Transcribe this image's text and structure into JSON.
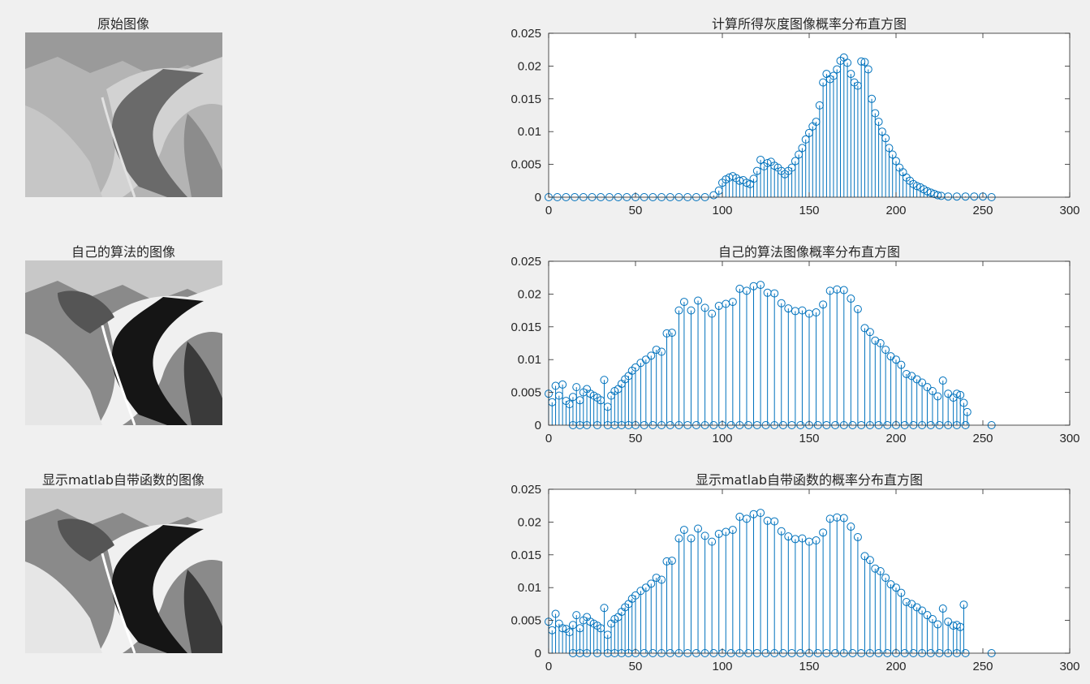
{
  "images": [
    {
      "title": "原始图像"
    },
    {
      "title": "自己的算法的图像"
    },
    {
      "title": "显示matlab自带函数的图像"
    }
  ],
  "colors": {
    "stem": "#0072bd",
    "axis": "#262626",
    "plot_bg": "#ffffff",
    "figure_bg": "#f0f0f0"
  },
  "chart_data": [
    {
      "type": "stem",
      "title": "计算所得灰度图像概率分布直方图",
      "xlim": [
        0,
        300
      ],
      "ylim": [
        0,
        0.025
      ],
      "xticks": [
        0,
        50,
        100,
        150,
        200,
        250,
        300
      ],
      "yticks": [
        0,
        0.005,
        0.01,
        0.015,
        0.02,
        0.025
      ],
      "ytick_labels": [
        "0",
        "0.005",
        "0.01",
        "0.015",
        "0.02",
        "0.025"
      ],
      "points": [
        [
          0,
          0
        ],
        [
          5,
          0
        ],
        [
          10,
          0
        ],
        [
          15,
          0
        ],
        [
          20,
          0
        ],
        [
          25,
          0
        ],
        [
          30,
          0
        ],
        [
          35,
          0
        ],
        [
          40,
          0
        ],
        [
          45,
          0
        ],
        [
          50,
          0
        ],
        [
          55,
          0
        ],
        [
          60,
          0
        ],
        [
          65,
          0
        ],
        [
          70,
          0
        ],
        [
          75,
          0
        ],
        [
          80,
          0
        ],
        [
          85,
          0
        ],
        [
          90,
          0
        ],
        [
          95,
          0.0003
        ],
        [
          98,
          0.001
        ],
        [
          100,
          0.0022
        ],
        [
          102,
          0.0027
        ],
        [
          104,
          0.003
        ],
        [
          106,
          0.0032
        ],
        [
          108,
          0.0029
        ],
        [
          110,
          0.0025
        ],
        [
          112,
          0.0026
        ],
        [
          114,
          0.0022
        ],
        [
          116,
          0.002
        ],
        [
          118,
          0.0028
        ],
        [
          120,
          0.004
        ],
        [
          122,
          0.0057
        ],
        [
          124,
          0.0047
        ],
        [
          126,
          0.0052
        ],
        [
          128,
          0.0054
        ],
        [
          130,
          0.0048
        ],
        [
          132,
          0.0045
        ],
        [
          134,
          0.004
        ],
        [
          136,
          0.0035
        ],
        [
          138,
          0.004
        ],
        [
          140,
          0.0045
        ],
        [
          142,
          0.0055
        ],
        [
          144,
          0.0065
        ],
        [
          146,
          0.0075
        ],
        [
          148,
          0.0088
        ],
        [
          150,
          0.0098
        ],
        [
          152,
          0.0108
        ],
        [
          154,
          0.0115
        ],
        [
          156,
          0.014
        ],
        [
          158,
          0.0175
        ],
        [
          160,
          0.0188
        ],
        [
          162,
          0.018
        ],
        [
          164,
          0.0185
        ],
        [
          166,
          0.0195
        ],
        [
          168,
          0.0208
        ],
        [
          170,
          0.0213
        ],
        [
          172,
          0.0205
        ],
        [
          174,
          0.0188
        ],
        [
          176,
          0.0175
        ],
        [
          178,
          0.017
        ],
        [
          180,
          0.0207
        ],
        [
          182,
          0.0206
        ],
        [
          184,
          0.0195
        ],
        [
          186,
          0.015
        ],
        [
          188,
          0.0128
        ],
        [
          190,
          0.0115
        ],
        [
          192,
          0.01
        ],
        [
          194,
          0.009
        ],
        [
          196,
          0.0075
        ],
        [
          198,
          0.0065
        ],
        [
          200,
          0.0055
        ],
        [
          202,
          0.0045
        ],
        [
          204,
          0.0038
        ],
        [
          206,
          0.003
        ],
        [
          208,
          0.0025
        ],
        [
          210,
          0.002
        ],
        [
          212,
          0.0017
        ],
        [
          214,
          0.0015
        ],
        [
          216,
          0.0012
        ],
        [
          218,
          0.0009
        ],
        [
          220,
          0.0007
        ],
        [
          222,
          0.0005
        ],
        [
          224,
          0.0003
        ],
        [
          226,
          0.0002
        ],
        [
          230,
          0.0001
        ],
        [
          235,
          0.0001
        ],
        [
          240,
          0.0001
        ],
        [
          245,
          0.0001
        ],
        [
          250,
          0.0001
        ],
        [
          255,
          0
        ]
      ]
    },
    {
      "type": "stem",
      "title": "自己的算法图像概率分布直方图",
      "xlim": [
        0,
        300
      ],
      "ylim": [
        0,
        0.025
      ],
      "xticks": [
        0,
        50,
        100,
        150,
        200,
        250,
        300
      ],
      "yticks": [
        0,
        0.005,
        0.01,
        0.015,
        0.02,
        0.025
      ],
      "ytick_labels": [
        "0",
        "0.005",
        "0.01",
        "0.015",
        "0.02",
        "0.025"
      ],
      "points": [
        [
          0,
          0.0048
        ],
        [
          2,
          0.0035
        ],
        [
          4,
          0.006
        ],
        [
          6,
          0.0045
        ],
        [
          8,
          0.0062
        ],
        [
          10,
          0.0037
        ],
        [
          12,
          0.0032
        ],
        [
          14,
          0.0043
        ],
        [
          16,
          0.0058
        ],
        [
          18,
          0.0038
        ],
        [
          20,
          0.005
        ],
        [
          22,
          0.0055
        ],
        [
          24,
          0.0048
        ],
        [
          26,
          0.0045
        ],
        [
          28,
          0.0042
        ],
        [
          30,
          0.0038
        ],
        [
          32,
          0.0069
        ],
        [
          34,
          0.0028
        ],
        [
          36,
          0.0045
        ],
        [
          38,
          0.0052
        ],
        [
          40,
          0.0055
        ],
        [
          42,
          0.0063
        ],
        [
          44,
          0.007
        ],
        [
          46,
          0.0075
        ],
        [
          48,
          0.0083
        ],
        [
          50,
          0.0088
        ],
        [
          53,
          0.0095
        ],
        [
          56,
          0.01
        ],
        [
          59,
          0.0106
        ],
        [
          62,
          0.0115
        ],
        [
          65,
          0.0112
        ],
        [
          68,
          0.014
        ],
        [
          71,
          0.0141
        ],
        [
          75,
          0.0175
        ],
        [
          78,
          0.0188
        ],
        [
          82,
          0.0175
        ],
        [
          86,
          0.019
        ],
        [
          90,
          0.0179
        ],
        [
          94,
          0.017
        ],
        [
          98,
          0.0182
        ],
        [
          102,
          0.0185
        ],
        [
          106,
          0.0188
        ],
        [
          110,
          0.0208
        ],
        [
          114,
          0.0205
        ],
        [
          118,
          0.0212
        ],
        [
          122,
          0.0214
        ],
        [
          126,
          0.0202
        ],
        [
          130,
          0.0201
        ],
        [
          134,
          0.0186
        ],
        [
          138,
          0.0178
        ],
        [
          142,
          0.0174
        ],
        [
          146,
          0.0175
        ],
        [
          150,
          0.017
        ],
        [
          154,
          0.0172
        ],
        [
          158,
          0.0184
        ],
        [
          162,
          0.0205
        ],
        [
          166,
          0.0207
        ],
        [
          170,
          0.0206
        ],
        [
          174,
          0.0193
        ],
        [
          178,
          0.0177
        ],
        [
          182,
          0.0148
        ],
        [
          185,
          0.0142
        ],
        [
          188,
          0.0129
        ],
        [
          191,
          0.0125
        ],
        [
          194,
          0.0115
        ],
        [
          197,
          0.0105
        ],
        [
          200,
          0.01
        ],
        [
          203,
          0.0092
        ],
        [
          206,
          0.0078
        ],
        [
          209,
          0.0075
        ],
        [
          212,
          0.007
        ],
        [
          215,
          0.0065
        ],
        [
          218,
          0.0058
        ],
        [
          221,
          0.0052
        ],
        [
          224,
          0.0044
        ],
        [
          227,
          0.0068
        ],
        [
          230,
          0.0048
        ],
        [
          233,
          0.0042
        ],
        [
          235,
          0.0048
        ],
        [
          237,
          0.0046
        ],
        [
          239,
          0.0034
        ],
        [
          241,
          0.002
        ],
        [
          14,
          0
        ],
        [
          18,
          0
        ],
        [
          22,
          0
        ],
        [
          28,
          0
        ],
        [
          34,
          0
        ],
        [
          38,
          0
        ],
        [
          42,
          0
        ],
        [
          46,
          0
        ],
        [
          50,
          0
        ],
        [
          55,
          0
        ],
        [
          60,
          0
        ],
        [
          65,
          0
        ],
        [
          70,
          0
        ],
        [
          75,
          0
        ],
        [
          80,
          0
        ],
        [
          85,
          0
        ],
        [
          90,
          0
        ],
        [
          95,
          0
        ],
        [
          100,
          0
        ],
        [
          105,
          0
        ],
        [
          110,
          0
        ],
        [
          115,
          0
        ],
        [
          120,
          0
        ],
        [
          125,
          0
        ],
        [
          130,
          0
        ],
        [
          135,
          0
        ],
        [
          140,
          0
        ],
        [
          145,
          0
        ],
        [
          150,
          0
        ],
        [
          155,
          0
        ],
        [
          160,
          0
        ],
        [
          165,
          0
        ],
        [
          170,
          0
        ],
        [
          175,
          0
        ],
        [
          180,
          0
        ],
        [
          185,
          0
        ],
        [
          190,
          0
        ],
        [
          195,
          0
        ],
        [
          200,
          0
        ],
        [
          205,
          0
        ],
        [
          210,
          0
        ],
        [
          215,
          0
        ],
        [
          220,
          0
        ],
        [
          225,
          0
        ],
        [
          230,
          0
        ],
        [
          235,
          0
        ],
        [
          240,
          0
        ],
        [
          255,
          0
        ]
      ]
    },
    {
      "type": "stem",
      "title": "显示matlab自带函数的概率分布直方图",
      "xlim": [
        0,
        300
      ],
      "ylim": [
        0,
        0.025
      ],
      "xticks": [
        0,
        50,
        100,
        150,
        200,
        250,
        300
      ],
      "yticks": [
        0,
        0.005,
        0.01,
        0.015,
        0.02,
        0.025
      ],
      "ytick_labels": [
        "0",
        "0.005",
        "0.01",
        "0.015",
        "0.02",
        "0.025"
      ],
      "points": [
        [
          0,
          0.0048
        ],
        [
          2,
          0.0035
        ],
        [
          4,
          0.006
        ],
        [
          6,
          0.0045
        ],
        [
          8,
          0.0038
        ],
        [
          10,
          0.0037
        ],
        [
          12,
          0.0032
        ],
        [
          14,
          0.0043
        ],
        [
          16,
          0.0058
        ],
        [
          18,
          0.0038
        ],
        [
          20,
          0.005
        ],
        [
          22,
          0.0055
        ],
        [
          24,
          0.0048
        ],
        [
          26,
          0.0045
        ],
        [
          28,
          0.0042
        ],
        [
          30,
          0.0038
        ],
        [
          32,
          0.0069
        ],
        [
          34,
          0.0028
        ],
        [
          36,
          0.0045
        ],
        [
          38,
          0.0052
        ],
        [
          40,
          0.0055
        ],
        [
          42,
          0.0063
        ],
        [
          44,
          0.007
        ],
        [
          46,
          0.0075
        ],
        [
          48,
          0.0083
        ],
        [
          50,
          0.0088
        ],
        [
          53,
          0.0095
        ],
        [
          56,
          0.01
        ],
        [
          59,
          0.0106
        ],
        [
          62,
          0.0115
        ],
        [
          65,
          0.0112
        ],
        [
          68,
          0.014
        ],
        [
          71,
          0.0141
        ],
        [
          75,
          0.0175
        ],
        [
          78,
          0.0188
        ],
        [
          82,
          0.0175
        ],
        [
          86,
          0.019
        ],
        [
          90,
          0.0179
        ],
        [
          94,
          0.017
        ],
        [
          98,
          0.0182
        ],
        [
          102,
          0.0185
        ],
        [
          106,
          0.0188
        ],
        [
          110,
          0.0208
        ],
        [
          114,
          0.0205
        ],
        [
          118,
          0.0212
        ],
        [
          122,
          0.0214
        ],
        [
          126,
          0.0202
        ],
        [
          130,
          0.0201
        ],
        [
          134,
          0.0186
        ],
        [
          138,
          0.0178
        ],
        [
          142,
          0.0174
        ],
        [
          146,
          0.0175
        ],
        [
          150,
          0.017
        ],
        [
          154,
          0.0172
        ],
        [
          158,
          0.0184
        ],
        [
          162,
          0.0205
        ],
        [
          166,
          0.0207
        ],
        [
          170,
          0.0206
        ],
        [
          174,
          0.0193
        ],
        [
          178,
          0.0177
        ],
        [
          182,
          0.0148
        ],
        [
          185,
          0.0142
        ],
        [
          188,
          0.0129
        ],
        [
          191,
          0.0125
        ],
        [
          194,
          0.0115
        ],
        [
          197,
          0.0105
        ],
        [
          200,
          0.01
        ],
        [
          203,
          0.0092
        ],
        [
          206,
          0.0078
        ],
        [
          209,
          0.0075
        ],
        [
          212,
          0.007
        ],
        [
          215,
          0.0065
        ],
        [
          218,
          0.0058
        ],
        [
          221,
          0.0052
        ],
        [
          224,
          0.0044
        ],
        [
          227,
          0.0068
        ],
        [
          230,
          0.0048
        ],
        [
          233,
          0.0042
        ],
        [
          235,
          0.0043
        ],
        [
          237,
          0.004
        ],
        [
          239,
          0.0074
        ],
        [
          14,
          0
        ],
        [
          18,
          0
        ],
        [
          22,
          0
        ],
        [
          28,
          0
        ],
        [
          34,
          0
        ],
        [
          38,
          0
        ],
        [
          42,
          0
        ],
        [
          46,
          0
        ],
        [
          50,
          0
        ],
        [
          55,
          0
        ],
        [
          60,
          0
        ],
        [
          65,
          0
        ],
        [
          70,
          0
        ],
        [
          75,
          0
        ],
        [
          80,
          0
        ],
        [
          85,
          0
        ],
        [
          90,
          0
        ],
        [
          95,
          0
        ],
        [
          100,
          0
        ],
        [
          105,
          0
        ],
        [
          110,
          0
        ],
        [
          115,
          0
        ],
        [
          120,
          0
        ],
        [
          125,
          0
        ],
        [
          130,
          0
        ],
        [
          135,
          0
        ],
        [
          140,
          0
        ],
        [
          145,
          0
        ],
        [
          150,
          0
        ],
        [
          155,
          0
        ],
        [
          160,
          0
        ],
        [
          165,
          0
        ],
        [
          170,
          0
        ],
        [
          175,
          0
        ],
        [
          180,
          0
        ],
        [
          185,
          0
        ],
        [
          190,
          0
        ],
        [
          195,
          0
        ],
        [
          200,
          0
        ],
        [
          205,
          0
        ],
        [
          210,
          0
        ],
        [
          215,
          0
        ],
        [
          220,
          0
        ],
        [
          225,
          0
        ],
        [
          230,
          0
        ],
        [
          235,
          0
        ],
        [
          240,
          0
        ],
        [
          255,
          0
        ]
      ]
    }
  ]
}
